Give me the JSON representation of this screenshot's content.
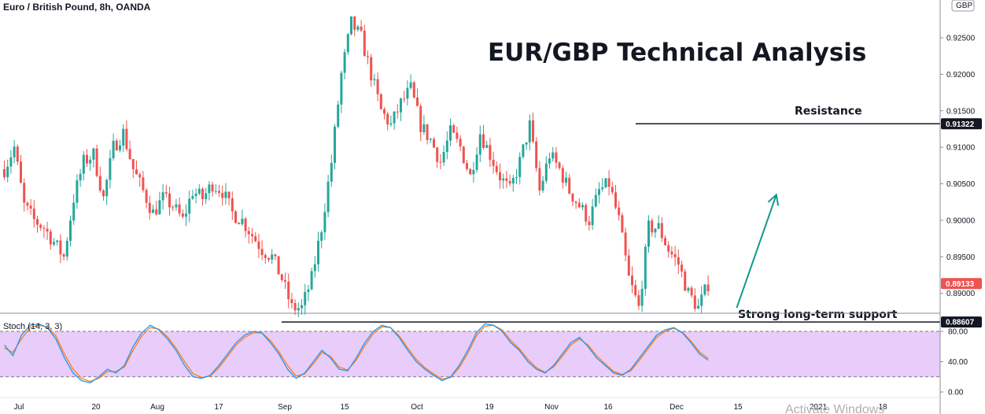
{
  "chart_data": [
    {
      "type": "candlestick",
      "symbol_title": "Euro / British Pound, 8h, OANDA",
      "title": "EUR/GBP Technical Analysis",
      "currency": "GBP",
      "y_ticks": [
        "0.92500",
        "0.92000",
        "0.91500",
        "0.91000",
        "0.90500",
        "0.90000",
        "0.89500",
        "0.89000"
      ],
      "ylim": [
        0.884,
        0.928
      ],
      "x_ticks": [
        "Jul",
        "20",
        "Aug",
        "17",
        "Sep",
        "15",
        "Oct",
        "19",
        "Nov",
        "16",
        "Dec",
        "15",
        "2021",
        "18"
      ],
      "price_path": [
        {
          "t": 0,
          "v": 0.907
        },
        {
          "t": 3,
          "v": 0.91
        },
        {
          "t": 6,
          "v": 0.902
        },
        {
          "t": 9,
          "v": 0.9
        },
        {
          "t": 12,
          "v": 0.899
        },
        {
          "t": 15,
          "v": 0.897
        },
        {
          "t": 18,
          "v": 0.895
        },
        {
          "t": 21,
          "v": 0.903
        },
        {
          "t": 24,
          "v": 0.908
        },
        {
          "t": 27,
          "v": 0.909
        },
        {
          "t": 30,
          "v": 0.903
        },
        {
          "t": 33,
          "v": 0.91
        },
        {
          "t": 36,
          "v": 0.912
        },
        {
          "t": 39,
          "v": 0.907
        },
        {
          "t": 42,
          "v": 0.904
        },
        {
          "t": 45,
          "v": 0.901
        },
        {
          "t": 48,
          "v": 0.903
        },
        {
          "t": 51,
          "v": 0.902
        },
        {
          "t": 54,
          "v": 0.9
        },
        {
          "t": 57,
          "v": 0.904
        },
        {
          "t": 60,
          "v": 0.903
        },
        {
          "t": 63,
          "v": 0.905
        },
        {
          "t": 66,
          "v": 0.904
        },
        {
          "t": 69,
          "v": 0.901
        },
        {
          "t": 72,
          "v": 0.9
        },
        {
          "t": 75,
          "v": 0.898
        },
        {
          "t": 78,
          "v": 0.896
        },
        {
          "t": 81,
          "v": 0.895
        },
        {
          "t": 84,
          "v": 0.892
        },
        {
          "t": 87,
          "v": 0.888
        },
        {
          "t": 90,
          "v": 0.888
        },
        {
          "t": 93,
          "v": 0.892
        },
        {
          "t": 96,
          "v": 0.899
        },
        {
          "t": 99,
          "v": 0.908
        },
        {
          "t": 102,
          "v": 0.92
        },
        {
          "t": 105,
          "v": 0.927
        },
        {
          "t": 108,
          "v": 0.925
        },
        {
          "t": 111,
          "v": 0.92
        },
        {
          "t": 114,
          "v": 0.915
        },
        {
          "t": 117,
          "v": 0.913
        },
        {
          "t": 120,
          "v": 0.916
        },
        {
          "t": 123,
          "v": 0.918
        },
        {
          "t": 126,
          "v": 0.913
        },
        {
          "t": 129,
          "v": 0.911
        },
        {
          "t": 132,
          "v": 0.908
        },
        {
          "t": 135,
          "v": 0.912
        },
        {
          "t": 138,
          "v": 0.91
        },
        {
          "t": 141,
          "v": 0.906
        },
        {
          "t": 144,
          "v": 0.912
        },
        {
          "t": 147,
          "v": 0.909
        },
        {
          "t": 150,
          "v": 0.906
        },
        {
          "t": 153,
          "v": 0.904
        },
        {
          "t": 156,
          "v": 0.908
        },
        {
          "t": 159,
          "v": 0.913
        },
        {
          "t": 162,
          "v": 0.904
        },
        {
          "t": 165,
          "v": 0.909
        },
        {
          "t": 168,
          "v": 0.907
        },
        {
          "t": 171,
          "v": 0.904
        },
        {
          "t": 174,
          "v": 0.902
        },
        {
          "t": 177,
          "v": 0.9
        },
        {
          "t": 180,
          "v": 0.904
        },
        {
          "t": 183,
          "v": 0.905
        },
        {
          "t": 186,
          "v": 0.9
        },
        {
          "t": 189,
          "v": 0.892
        },
        {
          "t": 192,
          "v": 0.888
        },
        {
          "t": 195,
          "v": 0.899
        },
        {
          "t": 198,
          "v": 0.899
        },
        {
          "t": 201,
          "v": 0.896
        },
        {
          "t": 204,
          "v": 0.894
        },
        {
          "t": 207,
          "v": 0.89
        },
        {
          "t": 210,
          "v": 0.888
        },
        {
          "t": 213,
          "v": 0.8913
        }
      ],
      "annotations": {
        "resistance_label": "Resistance",
        "resistance_price": "0.91322",
        "resistance_value": 0.91322,
        "support_label": "Strong long-term support",
        "support_price": "0.88607",
        "support_value": 0.88607,
        "last_price": "0.89133",
        "last_value": 0.89133,
        "arrow_from": {
          "t": 222,
          "v": 0.888
        },
        "arrow_to": {
          "t": 234,
          "v": 0.9035
        }
      },
      "colors": {
        "up": "#26a69a",
        "down": "#ef5350",
        "arrow": "#11998e",
        "last_tag": "#ef5350",
        "line_tag": "#131722"
      }
    },
    {
      "type": "line",
      "title": "Stoch (14, 3, 3)",
      "y_ticks": [
        "80.00",
        "40.00",
        "0.00"
      ],
      "ylim": [
        0,
        100
      ],
      "band": [
        20,
        80
      ],
      "series": [
        {
          "color": "#2196f3",
          "values": [
            62,
            48,
            75,
            88,
            90,
            85,
            70,
            45,
            25,
            15,
            12,
            20,
            30,
            25,
            35,
            60,
            78,
            88,
            82,
            70,
            55,
            35,
            20,
            18,
            22,
            35,
            50,
            65,
            75,
            80,
            78,
            65,
            50,
            30,
            18,
            25,
            40,
            55,
            45,
            30,
            28,
            45,
            65,
            80,
            88,
            85,
            72,
            55,
            40,
            30,
            22,
            15,
            20,
            35,
            55,
            78,
            90,
            88,
            80,
            65,
            55,
            40,
            30,
            25,
            35,
            50,
            65,
            72,
            60,
            45,
            35,
            25,
            22,
            30,
            45,
            60,
            75,
            82,
            85,
            78,
            65,
            50,
            42
          ]
        },
        {
          "color": "#ff7f0e",
          "values": [
            58,
            52,
            70,
            85,
            88,
            86,
            74,
            50,
            30,
            18,
            14,
            18,
            27,
            27,
            33,
            55,
            74,
            85,
            83,
            73,
            58,
            40,
            24,
            19,
            21,
            32,
            47,
            62,
            72,
            78,
            78,
            68,
            53,
            35,
            21,
            24,
            37,
            52,
            47,
            33,
            29,
            42,
            61,
            77,
            86,
            85,
            74,
            58,
            43,
            32,
            24,
            17,
            19,
            32,
            51,
            74,
            87,
            88,
            82,
            68,
            57,
            43,
            32,
            26,
            33,
            47,
            62,
            70,
            62,
            48,
            37,
            27,
            23,
            28,
            42,
            57,
            72,
            80,
            84,
            79,
            67,
            53,
            44
          ]
        }
      ]
    }
  ],
  "watermark": "Activate Windows"
}
